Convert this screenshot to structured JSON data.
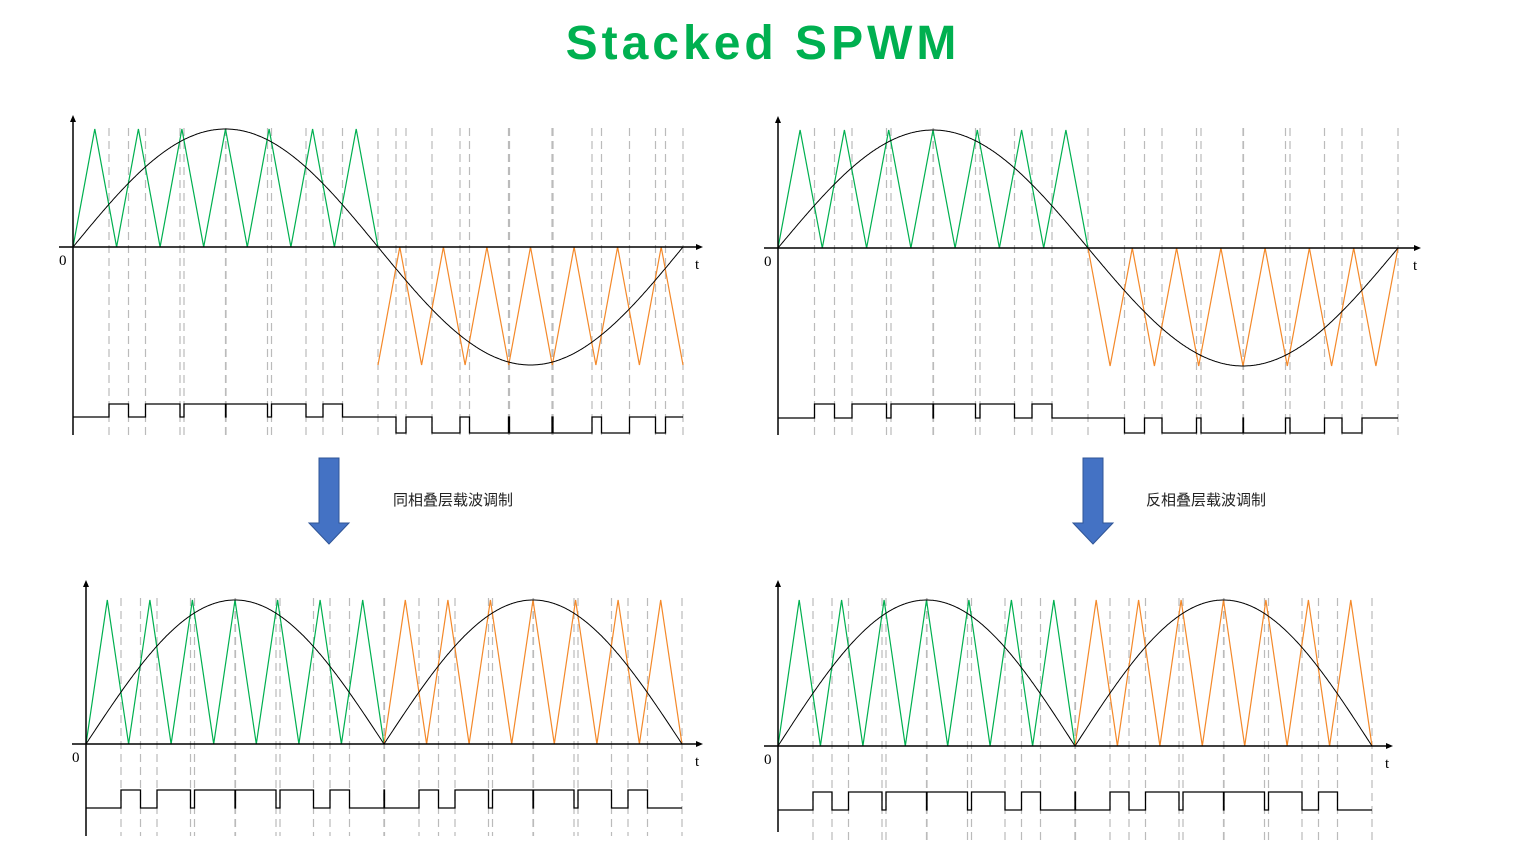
{
  "title": "Stacked SPWM",
  "colors": {
    "title": "#00b050",
    "upper_carrier": "#00b050",
    "lower_carrier": "#f4892a",
    "modulating": "#000000",
    "arrow": "#4472c4",
    "guides": "#bbbbbb"
  },
  "captions": {
    "in_phase": "同相叠层载波调制",
    "anti_phase": "反相叠层载波调制"
  },
  "axis_labels": {
    "origin": "0",
    "time": "t"
  },
  "carriers_per_half_cycle": 7,
  "panels": [
    {
      "id": "in-phase-bipolar",
      "carrier_relation": "in-phase",
      "signal": "sine",
      "pwm_levels": 3
    },
    {
      "id": "anti-phase-bipolar",
      "carrier_relation": "anti-phase",
      "signal": "sine",
      "pwm_levels": 3
    },
    {
      "id": "in-phase-rectified",
      "carrier_relation": "in-phase",
      "signal": "rectified-sine",
      "pwm_levels": 2
    },
    {
      "id": "anti-phase-rectified",
      "carrier_relation": "anti-phase",
      "signal": "rectified-sine",
      "pwm_levels": 2
    }
  ]
}
